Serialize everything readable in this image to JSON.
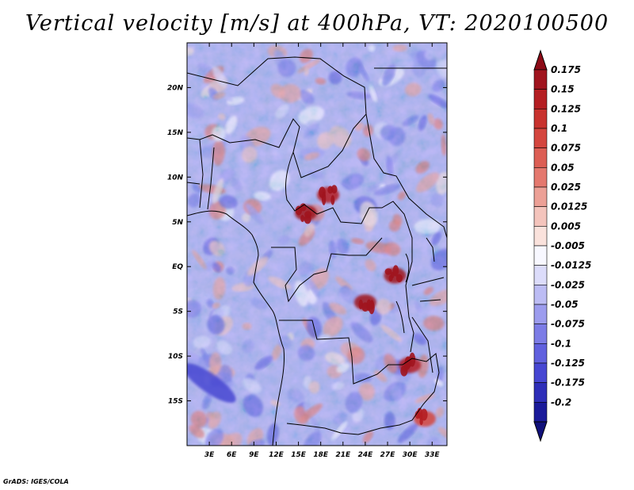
{
  "title": "Vertical velocity [m/s] at 400hPa, VT: 2020100500",
  "credit": "GrADS: IGES/COLA",
  "chart_data": {
    "type": "heatmap",
    "title": "Vertical velocity [m/s] at 400hPa, VT: 2020100500",
    "variable": "Vertical velocity",
    "units": "m/s",
    "level": "400hPa",
    "valid_time": "2020100500",
    "x_axis": {
      "range_deg_east": [
        0,
        35
      ],
      "ticks": [
        {
          "value": 3,
          "label": "3E"
        },
        {
          "value": 6,
          "label": "6E"
        },
        {
          "value": 9,
          "label": "9E"
        },
        {
          "value": 12,
          "label": "12E"
        },
        {
          "value": 15,
          "label": "15E"
        },
        {
          "value": 18,
          "label": "18E"
        },
        {
          "value": 21,
          "label": "21E"
        },
        {
          "value": 24,
          "label": "24E"
        },
        {
          "value": 27,
          "label": "27E"
        },
        {
          "value": 30,
          "label": "30E"
        },
        {
          "value": 33,
          "label": "33E"
        }
      ]
    },
    "y_axis": {
      "range_deg_north": [
        -20,
        25
      ],
      "ticks": [
        {
          "value": 20,
          "label": "20N"
        },
        {
          "value": 15,
          "label": "15N"
        },
        {
          "value": 10,
          "label": "10N"
        },
        {
          "value": 5,
          "label": "5N"
        },
        {
          "value": 0,
          "label": "EQ"
        },
        {
          "value": -5,
          "label": "5S"
        },
        {
          "value": -10,
          "label": "10S"
        },
        {
          "value": -15,
          "label": "15S"
        }
      ]
    },
    "colorbar": {
      "levels": [
        {
          "label": "0.175",
          "color": "#a0141e"
        },
        {
          "label": "0.15",
          "color": "#b41e22"
        },
        {
          "label": "0.125",
          "color": "#c8322e"
        },
        {
          "label": "0.1",
          "color": "#d4463e"
        },
        {
          "label": "0.075",
          "color": "#dc5e54"
        },
        {
          "label": "0.05",
          "color": "#e4786e"
        },
        {
          "label": "0.025",
          "color": "#eca096"
        },
        {
          "label": "0.0125",
          "color": "#f4c4bc"
        },
        {
          "label": "0.005",
          "color": "#fae2dc"
        },
        {
          "label": "-0.005",
          "color": "#f8f8ff"
        },
        {
          "label": "-0.0125",
          "color": "#dcdcfa"
        },
        {
          "label": "-0.025",
          "color": "#bcbcf4"
        },
        {
          "label": "-0.05",
          "color": "#9c9cee"
        },
        {
          "label": "-0.075",
          "color": "#7c7ce6"
        },
        {
          "label": "-0.1",
          "color": "#6060de"
        },
        {
          "label": "-0.125",
          "color": "#4646d2"
        },
        {
          "label": "-0.175",
          "color": "#2e2eb8"
        },
        {
          "label": "-0.2",
          "color": "#1a1a9a"
        }
      ],
      "top_arrow_color": "#8c0a16",
      "bottom_arrow_color": "#10107a"
    },
    "notable_features": [
      {
        "description": "strong ascent cluster",
        "lon": 16,
        "lat": 6,
        "approx_value": 0.175
      },
      {
        "description": "strong ascent cluster",
        "lon": 19,
        "lat": 8,
        "approx_value": 0.15
      },
      {
        "description": "strong ascent cluster",
        "lon": 24,
        "lat": -4,
        "approx_value": 0.175
      },
      {
        "description": "strong ascent cluster",
        "lon": 28,
        "lat": -1,
        "approx_value": 0.175
      },
      {
        "description": "strong ascent",
        "lon": 30,
        "lat": -11,
        "approx_value": 0.15
      },
      {
        "description": "strong ascent",
        "lon": 32,
        "lat": -17,
        "approx_value": 0.1
      },
      {
        "description": "subsidence band",
        "lon": 3,
        "lat": -13,
        "approx_value": -0.125
      }
    ]
  }
}
